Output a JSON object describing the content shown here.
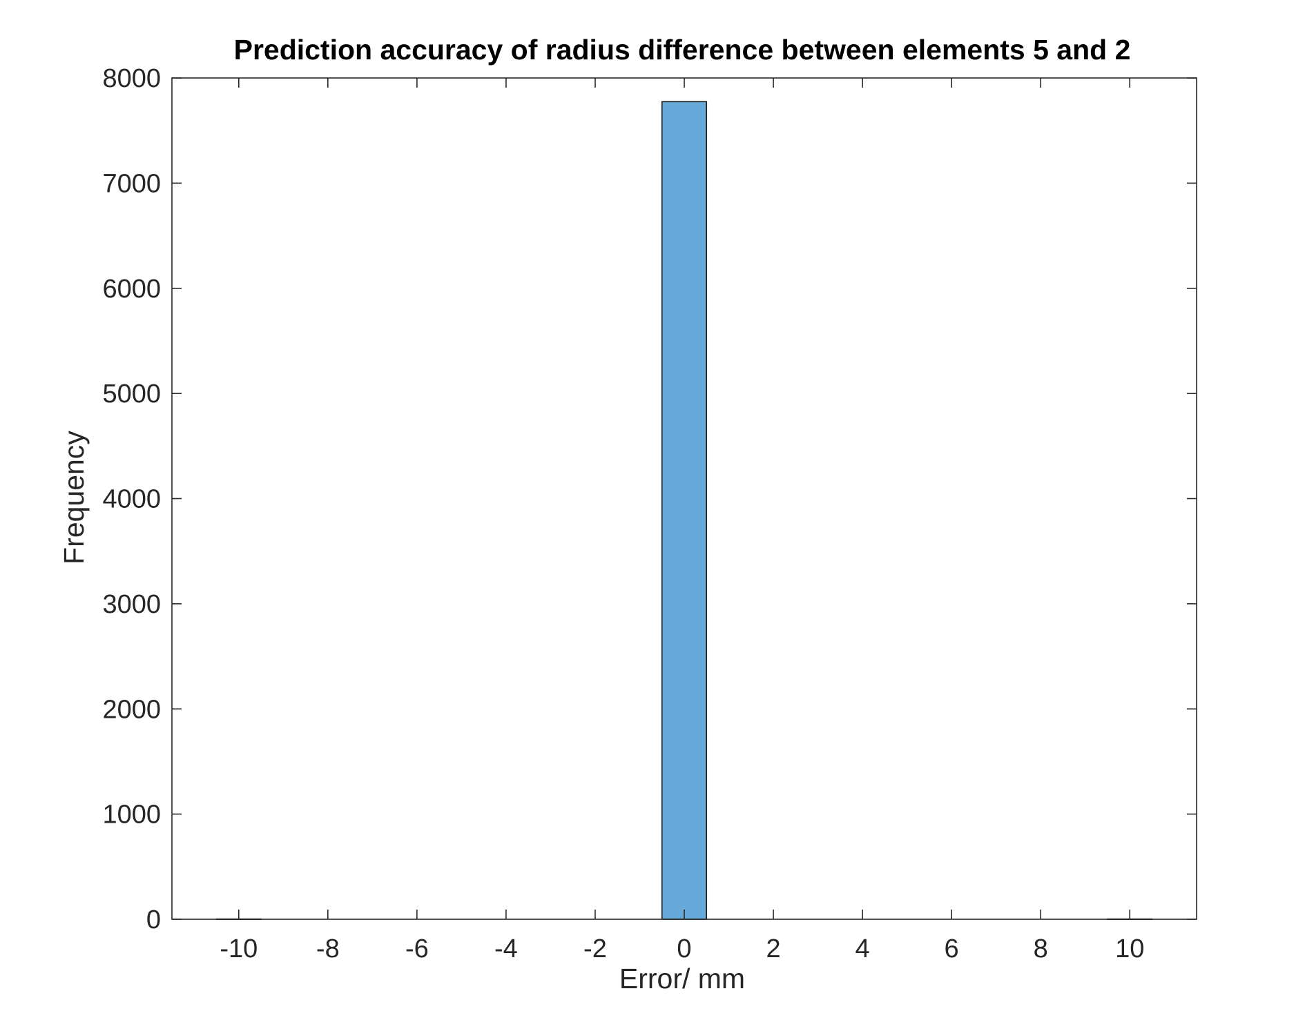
{
  "chart_data": {
    "type": "bar",
    "title": "Prediction accuracy of radius difference between elements 5 and 2",
    "xlabel": "Error/ mm",
    "ylabel": "Frequency",
    "xlim": [
      -11.5,
      11.5
    ],
    "ylim": [
      0,
      8000
    ],
    "x_ticks": [
      -10,
      -8,
      -6,
      -4,
      -2,
      0,
      2,
      4,
      6,
      8,
      10
    ],
    "x_tick_labels": [
      "-10",
      "-8",
      "-6",
      "-4",
      "-2",
      "0",
      "2",
      "4",
      "6",
      "8",
      "10"
    ],
    "y_ticks": [
      0,
      1000,
      2000,
      3000,
      4000,
      5000,
      6000,
      7000,
      8000
    ],
    "y_tick_labels": [
      "0",
      "1000",
      "2000",
      "3000",
      "4000",
      "5000",
      "6000",
      "7000",
      "8000"
    ],
    "bin_width": 1,
    "bins": [
      {
        "center": -10,
        "value": 2
      },
      {
        "center": 0,
        "value": 7775
      },
      {
        "center": 10,
        "value": 2
      }
    ],
    "grid": false,
    "legend": "none",
    "colors": {
      "bar_fill": "#67a9d8",
      "bar_edge": "#1a1a1a",
      "axes": "#262626"
    }
  }
}
